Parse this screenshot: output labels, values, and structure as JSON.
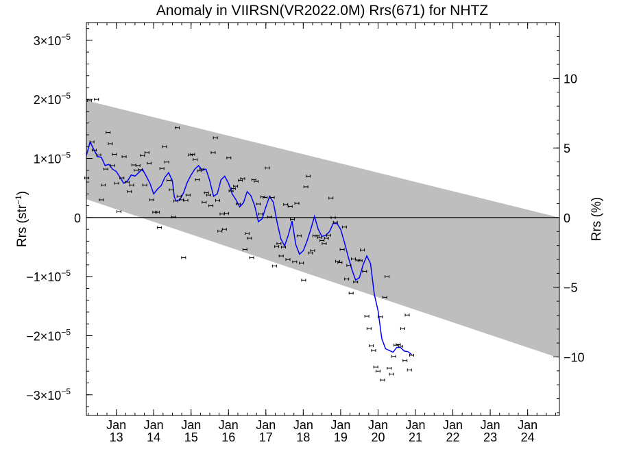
{
  "chart_data": {
    "type": "scatter",
    "title": "Anomaly in VIIRSN(VR2022.0M) Rrs(671) for NHTZ",
    "ylabel_left_main": "Rrs (str",
    "ylabel_left_exp": "−1",
    "ylabel_left_close": ")",
    "ylabel_right": "Rrs (%)",
    "xlabel": "",
    "xlim": [
      2012.2,
      2024.85
    ],
    "ylim": [
      -3.35e-05,
      3.3e-05
    ],
    "ylim_right_percent": [
      -14.2,
      14.0
    ],
    "grid": false,
    "left_ticks": [
      {
        "value": 3e-05,
        "mant": "3×10",
        "exp": "−5"
      },
      {
        "value": 2e-05,
        "mant": "2×10",
        "exp": "−5"
      },
      {
        "value": 1e-05,
        "mant": "1×10",
        "exp": "−5"
      },
      {
        "value": 0,
        "mant": "0",
        "exp": ""
      },
      {
        "value": -1e-05,
        "mant": "−1×10",
        "exp": "−5"
      },
      {
        "value": -2e-05,
        "mant": "−2×10",
        "exp": "−5"
      },
      {
        "value": -3e-05,
        "mant": "−3×10",
        "exp": "−5"
      }
    ],
    "right_ticks": [
      {
        "value": 10,
        "label": "10"
      },
      {
        "value": 5,
        "label": "5"
      },
      {
        "value": 0,
        "label": "0"
      },
      {
        "value": -5,
        "label": "−5"
      },
      {
        "value": -10,
        "label": "−10"
      }
    ],
    "x_ticks": [
      {
        "value": 2013.0,
        "month": "Jan",
        "year": "13"
      },
      {
        "value": 2014.0,
        "month": "Jan",
        "year": "14"
      },
      {
        "value": 2015.0,
        "month": "Jan",
        "year": "15"
      },
      {
        "value": 2016.0,
        "month": "Jan",
        "year": "16"
      },
      {
        "value": 2017.0,
        "month": "Jan",
        "year": "17"
      },
      {
        "value": 2018.0,
        "month": "Jan",
        "year": "18"
      },
      {
        "value": 2019.0,
        "month": "Jan",
        "year": "19"
      },
      {
        "value": 2020.0,
        "month": "Jan",
        "year": "20"
      },
      {
        "value": 2021.0,
        "month": "Jan",
        "year": "21"
      },
      {
        "value": 2022.0,
        "month": "Jan",
        "year": "22"
      },
      {
        "value": 2023.0,
        "month": "Jan",
        "year": "23"
      },
      {
        "value": 2024.0,
        "month": "Jan",
        "year": "24"
      }
    ],
    "band": {
      "upper": [
        [
          2012.2,
          1.98e-05
        ],
        [
          2024.85,
          0.0
        ]
      ],
      "lower": [
        [
          2012.2,
          3.1e-06
        ],
        [
          2024.85,
          -2.38e-05
        ]
      ],
      "color": "#bebebe"
    },
    "zero_line": 0,
    "series": [
      {
        "kind": "points",
        "color": "#000000",
        "points": [
          [
            2012.21,
            6.7e-06
          ],
          [
            2012.28,
            1.98e-05
          ],
          [
            2012.35,
            1.28e-05
          ],
          [
            2012.41,
            1.14e-05
          ],
          [
            2012.47,
            2e-05
          ],
          [
            2012.53,
            1.06e-05
          ],
          [
            2012.6,
            3e-06
          ],
          [
            2012.65,
            5.5e-06
          ],
          [
            2012.72,
            8.2e-06
          ],
          [
            2012.78,
            1.44e-05
          ],
          [
            2012.84,
            1.25e-05
          ],
          [
            2012.9,
            8.8e-06
          ],
          [
            2012.95,
            1.07e-05
          ],
          [
            2013.01,
            5.8e-06
          ],
          [
            2013.07,
            1e-06
          ],
          [
            2013.15,
            6.7e-06
          ],
          [
            2013.21,
            1.03e-05
          ],
          [
            2013.29,
            6e-06
          ],
          [
            2013.35,
            4.4e-06
          ],
          [
            2013.41,
            5.5e-06
          ],
          [
            2013.47,
            8.9e-06
          ],
          [
            2013.53,
            8e-06
          ],
          [
            2013.58,
            8.8e-06
          ],
          [
            2013.64,
            8.1e-06
          ],
          [
            2013.7,
            1.05e-05
          ],
          [
            2013.76,
            5.5e-06
          ],
          [
            2013.82,
            1.1e-05
          ],
          [
            2013.88,
            9.2e-06
          ],
          [
            2013.95,
            3e-06
          ],
          [
            2014.03,
            9e-07
          ],
          [
            2014.1,
            9e-07
          ],
          [
            2014.15,
            -1.7e-06
          ],
          [
            2014.22,
            8.3e-06
          ],
          [
            2014.29,
            1.2e-05
          ],
          [
            2014.35,
            9.4e-06
          ],
          [
            2014.41,
            6.3e-06
          ],
          [
            2014.47,
            4.7e-06
          ],
          [
            2014.53,
            1e-07
          ],
          [
            2014.59,
            2.8e-06
          ],
          [
            2014.63,
            1.52e-05
          ],
          [
            2014.68,
            3.6e-06
          ],
          [
            2014.74,
            3e-06
          ],
          [
            2014.8,
            -6.8e-06
          ],
          [
            2014.86,
            2.9e-06
          ],
          [
            2014.92,
            3.8e-06
          ],
          [
            2014.98,
            1.06e-05
          ],
          [
            2015.04,
            1.07e-05
          ],
          [
            2015.11,
            9.8e-06
          ],
          [
            2015.17,
            6.4e-06
          ],
          [
            2015.23,
            7.9e-06
          ],
          [
            2015.29,
            8.2e-06
          ],
          [
            2015.35,
            2.6e-06
          ],
          [
            2015.41,
            4.2e-06
          ],
          [
            2015.47,
            3.8e-06
          ],
          [
            2015.53,
            2e-06
          ],
          [
            2015.59,
            1.1e-05
          ],
          [
            2015.65,
            1.35e-05
          ],
          [
            2015.71,
            2.9e-06
          ],
          [
            2015.77,
            -2.3e-06
          ],
          [
            2015.83,
            6e-07
          ],
          [
            2015.89,
            -2e-06
          ],
          [
            2015.95,
            7e-07
          ],
          [
            2016.01,
            1.01e-05
          ],
          [
            2016.07,
            4.5e-06
          ],
          [
            2016.13,
            4.9e-06
          ],
          [
            2016.19,
            5.3e-06
          ],
          [
            2016.26,
            2.3e-06
          ],
          [
            2016.32,
            6.3e-06
          ],
          [
            2016.38,
            6.6e-06
          ],
          [
            2016.44,
            -5.4e-06
          ],
          [
            2016.5,
            -2.7e-06
          ],
          [
            2016.56,
            -3.5e-06
          ],
          [
            2016.62,
            -6.8e-06
          ],
          [
            2016.68,
            6.4e-06
          ],
          [
            2016.74,
            6.1e-06
          ],
          [
            2016.8,
            2.3e-06
          ],
          [
            2016.86,
            6e-07
          ],
          [
            2016.92,
            3.5e-06
          ],
          [
            2016.98,
            3.4e-06
          ],
          [
            2017.04,
            8.4e-06
          ],
          [
            2017.1,
            1e-07
          ],
          [
            2017.17,
            3.4e-06
          ],
          [
            2017.23,
            -8.2e-06
          ],
          [
            2017.29,
            -4.9e-06
          ],
          [
            2017.35,
            -4.4e-06
          ],
          [
            2017.41,
            -6.5e-06
          ],
          [
            2017.47,
            -5e-06
          ],
          [
            2017.53,
            2.2e-06
          ],
          [
            2017.59,
            -7.1e-06
          ],
          [
            2017.65,
            1.9e-06
          ],
          [
            2017.71,
            -3e-07
          ],
          [
            2017.77,
            -7.5e-06
          ],
          [
            2017.83,
            2.4e-06
          ],
          [
            2017.89,
            -3.1e-06
          ],
          [
            2017.95,
            -7.7e-06
          ],
          [
            2018.01,
            -1.06e-05
          ],
          [
            2018.07,
            5.2e-06
          ],
          [
            2018.13,
            7e-06
          ],
          [
            2018.19,
            -6e-06
          ],
          [
            2018.25,
            -5.6e-06
          ],
          [
            2018.31,
            -3.1e-06
          ],
          [
            2018.37,
            -3.1e-06
          ],
          [
            2018.43,
            -3.4e-06
          ],
          [
            2018.5,
            -3.9e-06
          ],
          [
            2018.56,
            -4.4e-06
          ],
          [
            2018.62,
            -3.5e-06
          ],
          [
            2018.68,
            -3e-06
          ],
          [
            2018.74,
            3.3e-06
          ],
          [
            2018.8,
            0.0
          ],
          [
            2018.86,
            -8e-07
          ],
          [
            2018.92,
            -7.4e-06
          ],
          [
            2018.98,
            -7.6e-06
          ],
          [
            2019.04,
            -5.4e-06
          ],
          [
            2019.1,
            -1.6e-06
          ],
          [
            2019.16,
            -1.04e-05
          ],
          [
            2019.22,
            -8.1e-06
          ],
          [
            2019.28,
            -1.28e-05
          ],
          [
            2019.34,
            -7e-06
          ],
          [
            2019.4,
            -1.09e-05
          ],
          [
            2019.46,
            -7.2e-06
          ],
          [
            2019.52,
            -7.3e-06
          ],
          [
            2019.58,
            -5.5e-06
          ],
          [
            2019.64,
            -9.1e-06
          ],
          [
            2019.7,
            -1.67e-05
          ],
          [
            2019.76,
            -1.88e-05
          ],
          [
            2019.82,
            -2.17e-05
          ],
          [
            2019.88,
            -2.25e-05
          ],
          [
            2019.94,
            -2.53e-05
          ],
          [
            2020.0,
            -2.6e-05
          ],
          [
            2020.06,
            -1.68e-05
          ],
          [
            2020.12,
            -2.75e-05
          ],
          [
            2020.18,
            -1.35e-05
          ],
          [
            2020.24,
            -1e-05
          ],
          [
            2020.3,
            -2.55e-05
          ],
          [
            2020.36,
            -2.65e-05
          ],
          [
            2020.42,
            -2.35e-05
          ],
          [
            2020.48,
            -2.16e-05
          ],
          [
            2020.54,
            -2.15e-05
          ],
          [
            2020.6,
            -2.18e-05
          ],
          [
            2020.66,
            -1.88e-05
          ],
          [
            2020.72,
            -2.42e-05
          ],
          [
            2020.78,
            -1.65e-05
          ],
          [
            2020.84,
            -2.58e-05
          ],
          [
            2020.9,
            -2.33e-05
          ]
        ]
      },
      {
        "kind": "line",
        "color": "#0000ff",
        "points": [
          [
            2012.2,
            1.05e-05
          ],
          [
            2012.3,
            1.28e-05
          ],
          [
            2012.4,
            1.15e-05
          ],
          [
            2012.5,
            1.03e-05
          ],
          [
            2012.6,
            1.02e-05
          ],
          [
            2012.7,
            8.8e-06
          ],
          [
            2012.8,
            9e-06
          ],
          [
            2012.9,
            8.2e-06
          ],
          [
            2013.0,
            7.8e-06
          ],
          [
            2013.1,
            6.8e-06
          ],
          [
            2013.2,
            5.8e-06
          ],
          [
            2013.3,
            6.2e-06
          ],
          [
            2013.4,
            7.2e-06
          ],
          [
            2013.5,
            7e-06
          ],
          [
            2013.6,
            7.6e-06
          ],
          [
            2013.7,
            8.2e-06
          ],
          [
            2013.8,
            7e-06
          ],
          [
            2013.9,
            5.8e-06
          ],
          [
            2014.0,
            4e-06
          ],
          [
            2014.1,
            4.8e-06
          ],
          [
            2014.2,
            5.4e-06
          ],
          [
            2014.3,
            6.8e-06
          ],
          [
            2014.4,
            7.6e-06
          ],
          [
            2014.5,
            6.2e-06
          ],
          [
            2014.55,
            3.5e-06
          ],
          [
            2014.6,
            2.8e-06
          ],
          [
            2014.7,
            3e-06
          ],
          [
            2014.8,
            4.2e-06
          ],
          [
            2014.9,
            6e-06
          ],
          [
            2015.0,
            7.2e-06
          ],
          [
            2015.1,
            8.2e-06
          ],
          [
            2015.2,
            8.8e-06
          ],
          [
            2015.3,
            8e-06
          ],
          [
            2015.4,
            8.2e-06
          ],
          [
            2015.5,
            6.2e-06
          ],
          [
            2015.6,
            3.6e-06
          ],
          [
            2015.7,
            4e-06
          ],
          [
            2015.8,
            6.4e-06
          ],
          [
            2015.9,
            7e-06
          ],
          [
            2016.0,
            5.8e-06
          ],
          [
            2016.1,
            4e-06
          ],
          [
            2016.2,
            3e-06
          ],
          [
            2016.3,
            1.8e-06
          ],
          [
            2016.4,
            2.5e-06
          ],
          [
            2016.5,
            4.4e-06
          ],
          [
            2016.6,
            3.7e-06
          ],
          [
            2016.7,
            2e-06
          ],
          [
            2016.8,
            -7e-07
          ],
          [
            2016.9,
            -2e-07
          ],
          [
            2017.0,
            1.8e-06
          ],
          [
            2017.1,
            3.6e-06
          ],
          [
            2017.2,
            2.6e-06
          ],
          [
            2017.3,
            -8e-07
          ],
          [
            2017.4,
            -3.6e-06
          ],
          [
            2017.5,
            -4.8e-06
          ],
          [
            2017.6,
            -3e-06
          ],
          [
            2017.7,
            -6e-07
          ],
          [
            2017.8,
            -4.6e-06
          ],
          [
            2017.9,
            -6.2e-06
          ],
          [
            2018.0,
            -5.6e-06
          ],
          [
            2018.1,
            -4e-06
          ],
          [
            2018.2,
            -2e-06
          ],
          [
            2018.3,
            2e-07
          ],
          [
            2018.4,
            -2e-06
          ],
          [
            2018.5,
            -3.2e-06
          ],
          [
            2018.6,
            -3e-06
          ],
          [
            2018.7,
            -2.4e-06
          ],
          [
            2018.8,
            -1e-06
          ],
          [
            2018.9,
            -1e-06
          ],
          [
            2019.0,
            -2e-06
          ],
          [
            2019.1,
            -4.2e-06
          ],
          [
            2019.2,
            -6.6e-06
          ],
          [
            2019.3,
            -8.8e-06
          ],
          [
            2019.4,
            -1.06e-05
          ],
          [
            2019.5,
            -1.02e-05
          ],
          [
            2019.6,
            -8e-06
          ],
          [
            2019.7,
            -6.5e-06
          ],
          [
            2019.8,
            -7.8e-06
          ],
          [
            2019.9,
            -1.3e-05
          ],
          [
            2020.0,
            -1.58e-05
          ],
          [
            2020.1,
            -2.05e-05
          ],
          [
            2020.2,
            -2.22e-05
          ],
          [
            2020.3,
            -2.25e-05
          ],
          [
            2020.4,
            -2.28e-05
          ],
          [
            2020.5,
            -2.2e-05
          ],
          [
            2020.6,
            -2.2e-05
          ],
          [
            2020.7,
            -2.26e-05
          ],
          [
            2020.8,
            -2.27e-05
          ],
          [
            2020.9,
            -2.32e-05
          ]
        ]
      }
    ]
  }
}
